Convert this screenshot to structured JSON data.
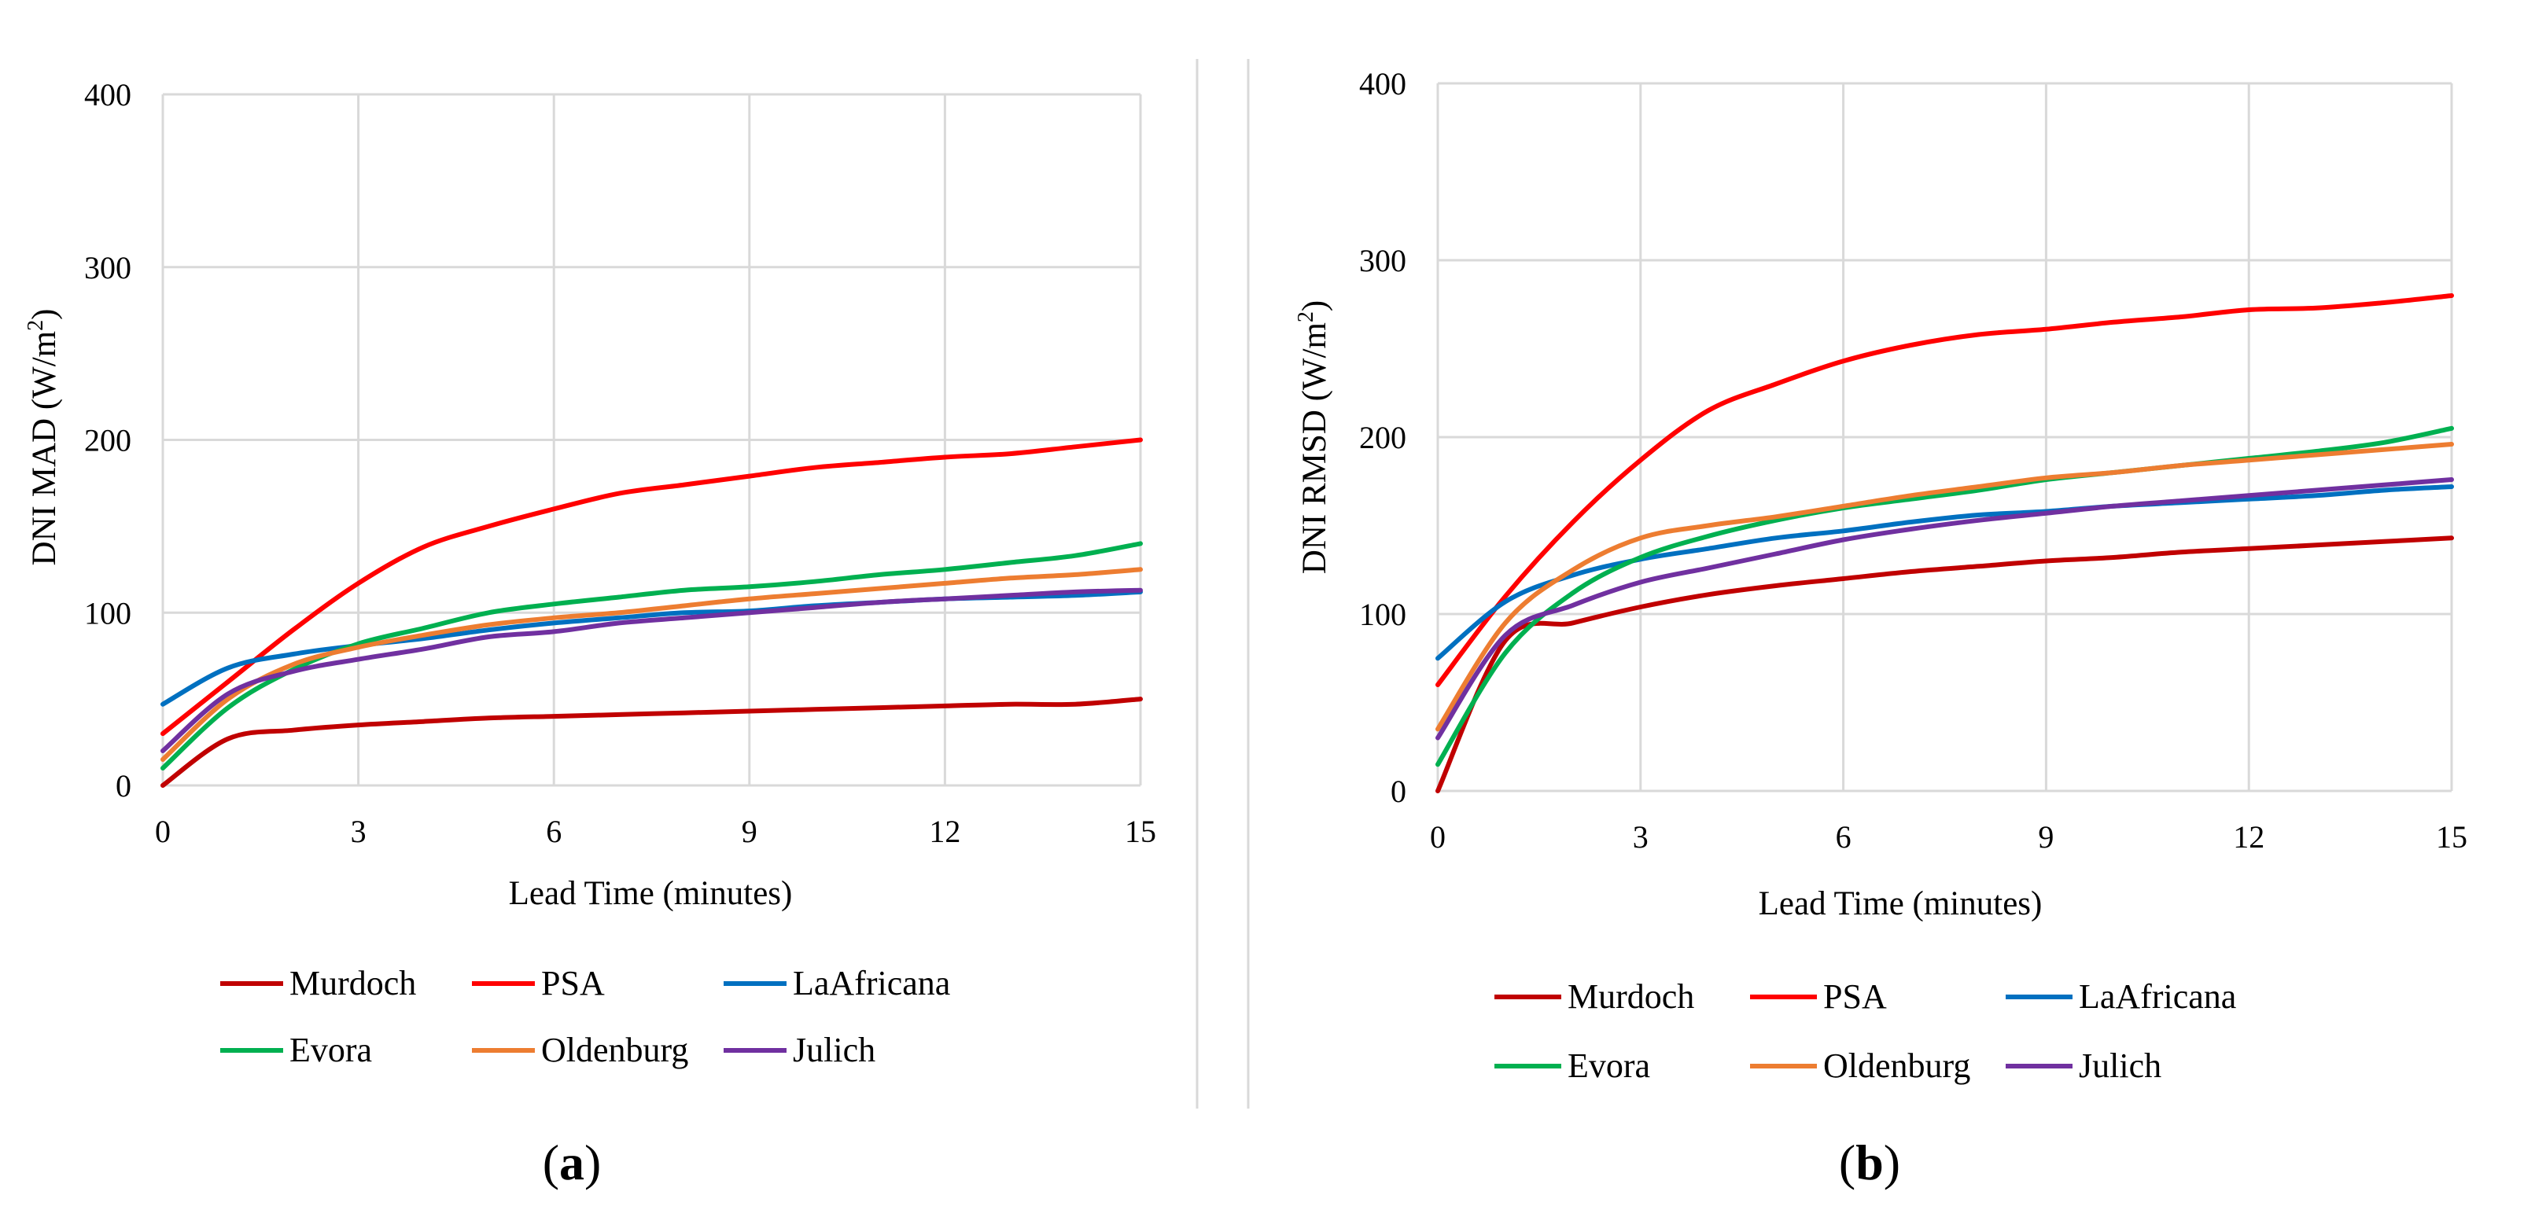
{
  "chart_data": [
    {
      "type": "line",
      "id": "a",
      "panel_label": "a",
      "title": "",
      "xlabel": "Lead Time (minutes)",
      "ylabel_main": "DNI MAD (W/m",
      "ylabel_sup": "2",
      "ylabel_end": ")",
      "xlim": [
        0,
        15
      ],
      "ylim": [
        0,
        400
      ],
      "xticks": [
        "0",
        "3",
        "6",
        "9",
        "12",
        "15"
      ],
      "yticks": [
        "0",
        "100",
        "200",
        "300",
        "400"
      ],
      "grid": true,
      "legend_position": "bottom",
      "series": [
        {
          "name": "Murdoch",
          "color": "#C00000",
          "points": [
            [
              0,
              0
            ],
            [
              1,
              27
            ],
            [
              2,
              32
            ],
            [
              3,
              35
            ],
            [
              4,
              37
            ],
            [
              5,
              39
            ],
            [
              6,
              40
            ],
            [
              7,
              41
            ],
            [
              8,
              42
            ],
            [
              9,
              43
            ],
            [
              10,
              44
            ],
            [
              11,
              45
            ],
            [
              12,
              46
            ],
            [
              13,
              47
            ],
            [
              14,
              47
            ],
            [
              15,
              50
            ]
          ]
        },
        {
          "name": "PSA",
          "color": "#FF0000",
          "points": [
            [
              0,
              30
            ],
            [
              1,
              60
            ],
            [
              2,
              90
            ],
            [
              3,
              117
            ],
            [
              4,
              138
            ],
            [
              5,
              150
            ],
            [
              6,
              160
            ],
            [
              7,
              169
            ],
            [
              8,
              174
            ],
            [
              9,
              179
            ],
            [
              10,
              184
            ],
            [
              11,
              187
            ],
            [
              12,
              190
            ],
            [
              13,
              192
            ],
            [
              14,
              196
            ],
            [
              15,
              200
            ]
          ]
        },
        {
          "name": "LaAfricana",
          "color": "#0070C0",
          "points": [
            [
              0,
              47
            ],
            [
              1,
              68
            ],
            [
              2,
              76
            ],
            [
              3,
              81
            ],
            [
              4,
              85
            ],
            [
              5,
              90
            ],
            [
              6,
              94
            ],
            [
              7,
              97
            ],
            [
              8,
              100
            ],
            [
              9,
              101
            ],
            [
              10,
              104
            ],
            [
              11,
              106
            ],
            [
              12,
              108
            ],
            [
              13,
              109
            ],
            [
              14,
              110
            ],
            [
              15,
              112
            ]
          ]
        },
        {
          "name": "Evora",
          "color": "#00B050",
          "points": [
            [
              0,
              10
            ],
            [
              1,
              45
            ],
            [
              2,
              67
            ],
            [
              3,
              82
            ],
            [
              4,
              91
            ],
            [
              5,
              100
            ],
            [
              6,
              105
            ],
            [
              7,
              109
            ],
            [
              8,
              113
            ],
            [
              9,
              115
            ],
            [
              10,
              118
            ],
            [
              11,
              122
            ],
            [
              12,
              125
            ],
            [
              13,
              129
            ],
            [
              14,
              133
            ],
            [
              15,
              140
            ]
          ]
        },
        {
          "name": "Oldenburg",
          "color": "#ED7D31",
          "points": [
            [
              0,
              15
            ],
            [
              1,
              50
            ],
            [
              2,
              70
            ],
            [
              3,
              80
            ],
            [
              4,
              87
            ],
            [
              5,
              93
            ],
            [
              6,
              97
            ],
            [
              7,
              100
            ],
            [
              8,
              104
            ],
            [
              9,
              108
            ],
            [
              10,
              111
            ],
            [
              11,
              114
            ],
            [
              12,
              117
            ],
            [
              13,
              120
            ],
            [
              14,
              122
            ],
            [
              15,
              125
            ]
          ]
        },
        {
          "name": "Julich",
          "color": "#7030A0",
          "points": [
            [
              0,
              20
            ],
            [
              1,
              53
            ],
            [
              2,
              66
            ],
            [
              3,
              73
            ],
            [
              4,
              79
            ],
            [
              5,
              86
            ],
            [
              6,
              89
            ],
            [
              7,
              94
            ],
            [
              8,
              97
            ],
            [
              9,
              100
            ],
            [
              10,
              103
            ],
            [
              11,
              106
            ],
            [
              12,
              108
            ],
            [
              13,
              110
            ],
            [
              14,
              112
            ],
            [
              15,
              113
            ]
          ]
        }
      ]
    },
    {
      "type": "line",
      "id": "b",
      "panel_label": "b",
      "title": "",
      "xlabel": "Lead Time (minutes)",
      "ylabel_main": "DNI RMSD (W/m",
      "ylabel_sup": "2",
      "ylabel_end": ")",
      "xlim": [
        0,
        15
      ],
      "ylim": [
        0,
        400
      ],
      "xticks": [
        "0",
        "3",
        "6",
        "9",
        "12",
        "15"
      ],
      "yticks": [
        "0",
        "100",
        "200",
        "300",
        "400"
      ],
      "grid": true,
      "legend_position": "bottom",
      "series": [
        {
          "name": "Murdoch",
          "color": "#C00000",
          "points": [
            [
              0,
              0
            ],
            [
              1,
              85
            ],
            [
              2,
              95
            ],
            [
              3,
              104
            ],
            [
              4,
              111
            ],
            [
              5,
              116
            ],
            [
              6,
              120
            ],
            [
              7,
              124
            ],
            [
              8,
              127
            ],
            [
              9,
              130
            ],
            [
              10,
              132
            ],
            [
              11,
              135
            ],
            [
              12,
              137
            ],
            [
              13,
              139
            ],
            [
              14,
              141
            ],
            [
              15,
              143
            ]
          ]
        },
        {
          "name": "PSA",
          "color": "#FF0000",
          "points": [
            [
              0,
              60
            ],
            [
              1,
              110
            ],
            [
              2,
              152
            ],
            [
              3,
              187
            ],
            [
              4,
              215
            ],
            [
              5,
              230
            ],
            [
              6,
              243
            ],
            [
              7,
              252
            ],
            [
              8,
              258
            ],
            [
              9,
              261
            ],
            [
              10,
              265
            ],
            [
              11,
              268
            ],
            [
              12,
              272
            ],
            [
              13,
              273
            ],
            [
              14,
              276
            ],
            [
              15,
              280
            ]
          ]
        },
        {
          "name": "LaAfricana",
          "color": "#0070C0",
          "points": [
            [
              0,
              75
            ],
            [
              1,
              107
            ],
            [
              2,
              122
            ],
            [
              3,
              131
            ],
            [
              4,
              137
            ],
            [
              5,
              143
            ],
            [
              6,
              147
            ],
            [
              7,
              152
            ],
            [
              8,
              156
            ],
            [
              9,
              158
            ],
            [
              10,
              161
            ],
            [
              11,
              163
            ],
            [
              12,
              165
            ],
            [
              13,
              167
            ],
            [
              14,
              170
            ],
            [
              15,
              172
            ]
          ]
        },
        {
          "name": "Evora",
          "color": "#00B050",
          "points": [
            [
              0,
              15
            ],
            [
              1,
              78
            ],
            [
              2,
              112
            ],
            [
              3,
              132
            ],
            [
              4,
              144
            ],
            [
              5,
              153
            ],
            [
              6,
              160
            ],
            [
              7,
              165
            ],
            [
              8,
              170
            ],
            [
              9,
              176
            ],
            [
              10,
              180
            ],
            [
              11,
              184
            ],
            [
              12,
              188
            ],
            [
              13,
              192
            ],
            [
              14,
              197
            ],
            [
              15,
              205
            ]
          ]
        },
        {
          "name": "Oldenburg",
          "color": "#ED7D31",
          "points": [
            [
              0,
              35
            ],
            [
              1,
              95
            ],
            [
              2,
              125
            ],
            [
              3,
              143
            ],
            [
              4,
              150
            ],
            [
              5,
              155
            ],
            [
              6,
              161
            ],
            [
              7,
              167
            ],
            [
              8,
              172
            ],
            [
              9,
              177
            ],
            [
              10,
              180
            ],
            [
              11,
              184
            ],
            [
              12,
              187
            ],
            [
              13,
              190
            ],
            [
              14,
              193
            ],
            [
              15,
              196
            ]
          ]
        },
        {
          "name": "Julich",
          "color": "#7030A0",
          "points": [
            [
              0,
              30
            ],
            [
              1,
              88
            ],
            [
              2,
              105
            ],
            [
              3,
              118
            ],
            [
              4,
              126
            ],
            [
              5,
              134
            ],
            [
              6,
              142
            ],
            [
              7,
              148
            ],
            [
              8,
              153
            ],
            [
              9,
              157
            ],
            [
              10,
              161
            ],
            [
              11,
              164
            ],
            [
              12,
              167
            ],
            [
              13,
              170
            ],
            [
              14,
              173
            ],
            [
              15,
              176
            ]
          ]
        }
      ]
    }
  ]
}
